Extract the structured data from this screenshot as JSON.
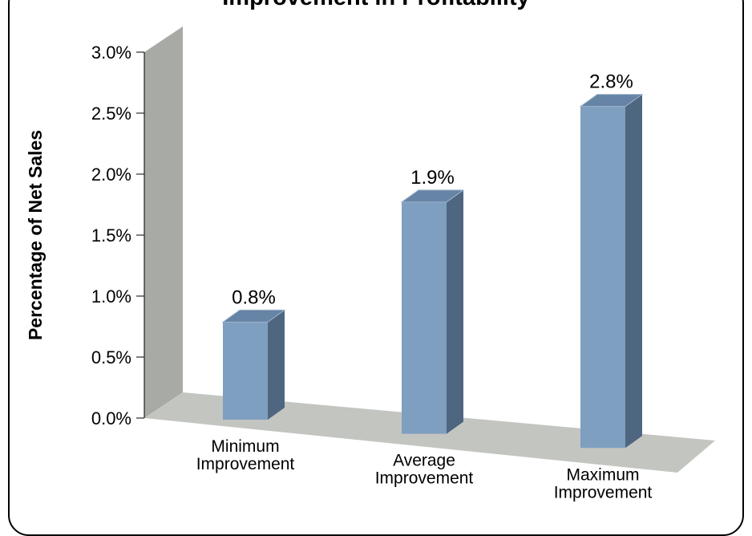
{
  "chart_data": {
    "type": "bar",
    "title": "Improvement in Profitability",
    "ylabel": "Percentage of Net Sales",
    "xlabel": "",
    "categories": [
      "Minimum Improvement",
      "Average Improvement",
      "Maximum Improvement"
    ],
    "category_labels": [
      [
        "Minimum",
        "Improvement"
      ],
      [
        "Average",
        "Improvement"
      ],
      [
        "Maximum",
        "Improvement"
      ]
    ],
    "values": [
      0.8,
      1.9,
      2.8
    ],
    "data_labels": [
      "0.8%",
      "1.9%",
      "2.8%"
    ],
    "ylim": [
      0,
      3.0
    ],
    "yticks": [
      0.0,
      0.5,
      1.0,
      1.5,
      2.0,
      2.5,
      3.0
    ],
    "ytick_labels": [
      "0.0%",
      "0.5%",
      "1.0%",
      "1.5%",
      "2.0%",
      "2.5%",
      "3.0%"
    ],
    "style": "3d-column",
    "legend": "none",
    "grid": false,
    "colors": {
      "bar_front": "#7f9fc1",
      "bar_side": "#4f6680",
      "bar_top": "#6684a5",
      "back_wall": "#a8aaa5",
      "floor": "#c3c5c0"
    }
  }
}
